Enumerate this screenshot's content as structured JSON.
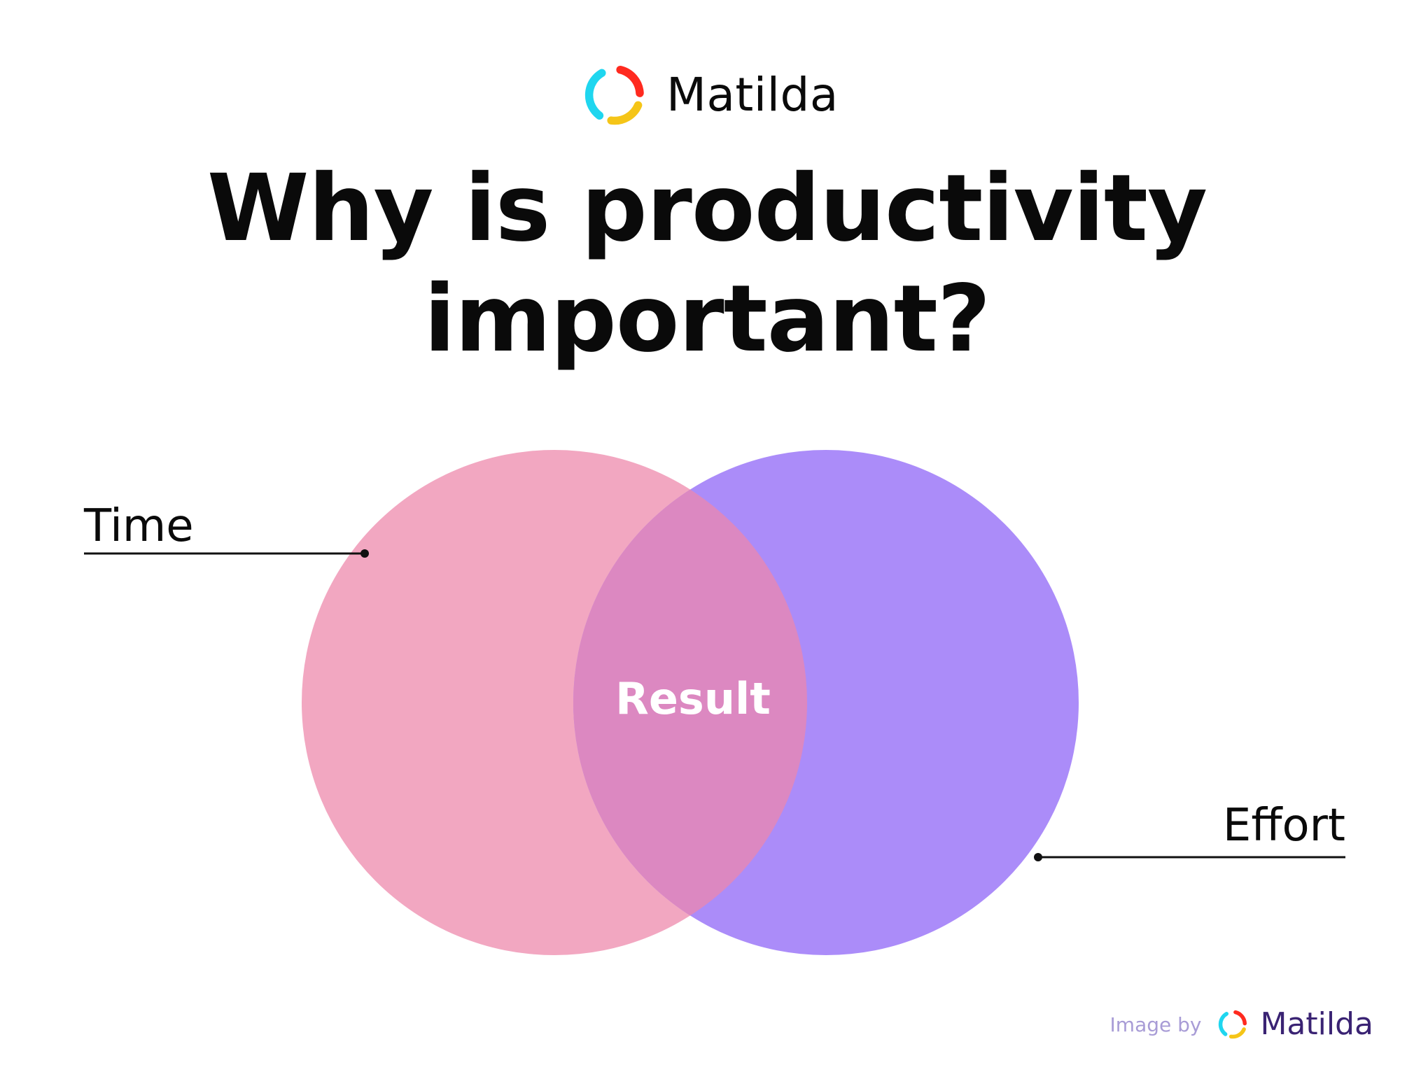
{
  "brand": {
    "name": "Matilda",
    "logo_colors": [
      "#ff2a1f",
      "#f5c518",
      "#1fd6ef"
    ]
  },
  "title": {
    "line1": "Why is productivity",
    "line2": "important?"
  },
  "venn": {
    "sets": [
      {
        "name": "Time",
        "color": "#f2a7c1"
      },
      {
        "name": "Effort",
        "color": "#ab8cf9"
      }
    ],
    "intersection": {
      "label": "Result",
      "color": "#dc88c1"
    }
  },
  "credit": {
    "prefix": "Image by",
    "name": "Matilda"
  }
}
